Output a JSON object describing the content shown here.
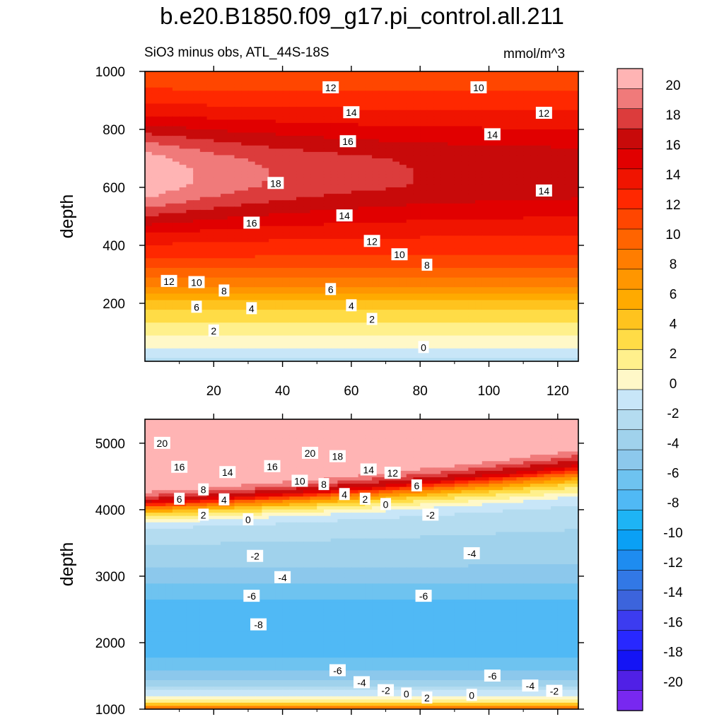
{
  "figure": {
    "title": "b.e20.B1850.f09_g17.pi_control.all.211",
    "subtitle_left": "SiO3 minus obs, ATL_44S-18S",
    "subtitle_right": "mmol/m^3"
  },
  "chart_data": [
    {
      "type": "heatmap",
      "name": "upper-panel",
      "xlabel": "",
      "ylabel": "depth",
      "xlim": [
        0,
        126
      ],
      "ylim": [
        1000,
        0
      ],
      "x_ticks": [
        20,
        40,
        60,
        80,
        100,
        120
      ],
      "x_tick_labels": [
        "20",
        "40",
        "60",
        "80",
        "100",
        "120"
      ],
      "y_ticks": [
        200,
        400,
        600,
        800,
        1000
      ],
      "y_tick_labels": [
        "200",
        "400",
        "600",
        "800",
        "1000"
      ],
      "depth_profile": [
        [
          0,
          -2
        ],
        [
          50,
          0
        ],
        [
          100,
          2
        ],
        [
          150,
          3
        ],
        [
          200,
          5
        ],
        [
          250,
          8
        ],
        [
          300,
          10
        ],
        [
          350,
          12
        ],
        [
          400,
          13
        ],
        [
          450,
          14
        ],
        [
          500,
          15
        ],
        [
          550,
          16
        ],
        [
          600,
          17
        ],
        [
          650,
          17
        ],
        [
          700,
          17
        ],
        [
          750,
          16
        ],
        [
          800,
          15
        ],
        [
          850,
          14
        ],
        [
          900,
          13
        ],
        [
          950,
          12
        ],
        [
          1000,
          11
        ]
      ],
      "core": {
        "center_x": 0,
        "center_depth": 640,
        "peak": 22,
        "x_decay": 45,
        "depth_half_width": 150
      },
      "contour_labels": [
        {
          "text": "0",
          "x": 81,
          "depth": 48
        },
        {
          "text": "2",
          "x": 20,
          "depth": 105
        },
        {
          "text": "2",
          "x": 66,
          "depth": 145
        },
        {
          "text": "4",
          "x": 31,
          "depth": 182
        },
        {
          "text": "4",
          "x": 60,
          "depth": 192
        },
        {
          "text": "6",
          "x": 15,
          "depth": 187
        },
        {
          "text": "6",
          "x": 54,
          "depth": 248
        },
        {
          "text": "8",
          "x": 23,
          "depth": 243
        },
        {
          "text": "8",
          "x": 82,
          "depth": 332
        },
        {
          "text": "10",
          "x": 15,
          "depth": 272
        },
        {
          "text": "10",
          "x": 74,
          "depth": 368
        },
        {
          "text": "12",
          "x": 7,
          "depth": 276
        },
        {
          "text": "12",
          "x": 66,
          "depth": 414
        },
        {
          "text": "14",
          "x": 58,
          "depth": 502
        },
        {
          "text": "14",
          "x": 116,
          "depth": 588
        },
        {
          "text": "14",
          "x": 101,
          "depth": 782
        },
        {
          "text": "14",
          "x": 60,
          "depth": 858
        },
        {
          "text": "16",
          "x": 31,
          "depth": 477
        },
        {
          "text": "16",
          "x": 59,
          "depth": 758
        },
        {
          "text": "18",
          "x": 38,
          "depth": 614
        },
        {
          "text": "12",
          "x": 116,
          "depth": 856
        },
        {
          "text": "12",
          "x": 54,
          "depth": 944
        },
        {
          "text": "10",
          "x": 97,
          "depth": 944
        }
      ]
    },
    {
      "type": "heatmap",
      "name": "lower-panel",
      "xlabel": "",
      "ylabel": "depth",
      "xlim": [
        0,
        126
      ],
      "ylim": [
        5360,
        1000
      ],
      "x_ticks": [
        20,
        40,
        60,
        80,
        100,
        120
      ],
      "x_tick_labels": [
        "",
        "",
        "",
        "",
        "",
        ""
      ],
      "y_ticks": [
        1000,
        2000,
        3000,
        4000,
        5000
      ],
      "y_tick_labels": [
        "1000",
        "2000",
        "3000",
        "4000",
        "5000"
      ],
      "depth_profile": [
        [
          1000,
          12
        ],
        [
          1100,
          2
        ],
        [
          1200,
          0
        ],
        [
          1300,
          -2
        ],
        [
          1450,
          -4
        ],
        [
          1600,
          -6
        ],
        [
          1800,
          -7
        ],
        [
          2000,
          -7.5
        ],
        [
          2300,
          -7.5
        ],
        [
          2600,
          -7
        ],
        [
          2800,
          -6
        ],
        [
          3000,
          -5
        ],
        [
          3200,
          -4
        ],
        [
          3400,
          -3.5
        ],
        [
          3600,
          -3
        ],
        [
          3800,
          -2.5
        ],
        [
          4000,
          -2
        ],
        [
          4200,
          0
        ],
        [
          4400,
          4
        ],
        [
          4550,
          10
        ],
        [
          4650,
          16
        ],
        [
          4750,
          18
        ],
        [
          4850,
          20
        ],
        [
          5000,
          22
        ],
        [
          5360,
          22
        ]
      ],
      "contour_labels": [
        {
          "text": "0",
          "x": 76,
          "depth": 1230
        },
        {
          "text": "2",
          "x": 82,
          "depth": 1170
        },
        {
          "text": "0",
          "x": 95,
          "depth": 1210
        },
        {
          "text": "-2",
          "x": 70,
          "depth": 1280
        },
        {
          "text": "-2",
          "x": 119,
          "depth": 1270
        },
        {
          "text": "-4",
          "x": 63,
          "depth": 1400
        },
        {
          "text": "-4",
          "x": 112,
          "depth": 1350
        },
        {
          "text": "-6",
          "x": 56,
          "depth": 1580
        },
        {
          "text": "-6",
          "x": 101,
          "depth": 1500
        },
        {
          "text": "-8",
          "x": 33,
          "depth": 2270
        },
        {
          "text": "-6",
          "x": 31,
          "depth": 2700
        },
        {
          "text": "-6",
          "x": 81,
          "depth": 2700
        },
        {
          "text": "-4",
          "x": 40,
          "depth": 2980
        },
        {
          "text": "-4",
          "x": 95,
          "depth": 3340
        },
        {
          "text": "-2",
          "x": 32,
          "depth": 3300
        },
        {
          "text": "-2",
          "x": 83,
          "depth": 3920
        },
        {
          "text": "0",
          "x": 30,
          "depth": 3850
        },
        {
          "text": "0",
          "x": 70,
          "depth": 4080
        },
        {
          "text": "2",
          "x": 17,
          "depth": 3920
        },
        {
          "text": "2",
          "x": 64,
          "depth": 4160
        },
        {
          "text": "4",
          "x": 23,
          "depth": 4150
        },
        {
          "text": "4",
          "x": 58,
          "depth": 4230
        },
        {
          "text": "6",
          "x": 10,
          "depth": 4160
        },
        {
          "text": "6",
          "x": 79,
          "depth": 4360
        },
        {
          "text": "8",
          "x": 17,
          "depth": 4300
        },
        {
          "text": "8",
          "x": 52,
          "depth": 4380
        },
        {
          "text": "10",
          "x": 45,
          "depth": 4430
        },
        {
          "text": "12",
          "x": 72,
          "depth": 4550
        },
        {
          "text": "14",
          "x": 24,
          "depth": 4560
        },
        {
          "text": "14",
          "x": 65,
          "depth": 4600
        },
        {
          "text": "16",
          "x": 10,
          "depth": 4640
        },
        {
          "text": "16",
          "x": 37,
          "depth": 4650
        },
        {
          "text": "18",
          "x": 56,
          "depth": 4800
        },
        {
          "text": "20",
          "x": 48,
          "depth": 4850
        },
        {
          "text": "20",
          "x": 5,
          "depth": 5000
        }
      ]
    }
  ],
  "colorbar": {
    "levels": [
      "20",
      "18",
      "16",
      "14",
      "12",
      "10",
      "8",
      "6",
      "4",
      "2",
      "0",
      "-2",
      "-4",
      "-6",
      "-8",
      "-10",
      "-12",
      "-14",
      "-16",
      "-18",
      "-20"
    ],
    "colors": [
      "#ffb4b4",
      "#f07a7a",
      "#dc3c3c",
      "#c80a0a",
      "#e10000",
      "#f01400",
      "#ff2800",
      "#ff4600",
      "#ff6400",
      "#ff7d00",
      "#ff9600",
      "#ffaa00",
      "#ffc31e",
      "#ffdc46",
      "#fff08c",
      "#fff8c8",
      "#c8e6f8",
      "#b4dcf0",
      "#a0d2ec",
      "#8cc8ec",
      "#6ec3f0",
      "#50b9f5",
      "#1eb4f5",
      "#0aa0f5",
      "#1e8cf0",
      "#3278e6",
      "#3c64dc",
      "#3c3cf0",
      "#2828ff",
      "#1414f5",
      "#5020e6",
      "#7828f0"
    ]
  }
}
